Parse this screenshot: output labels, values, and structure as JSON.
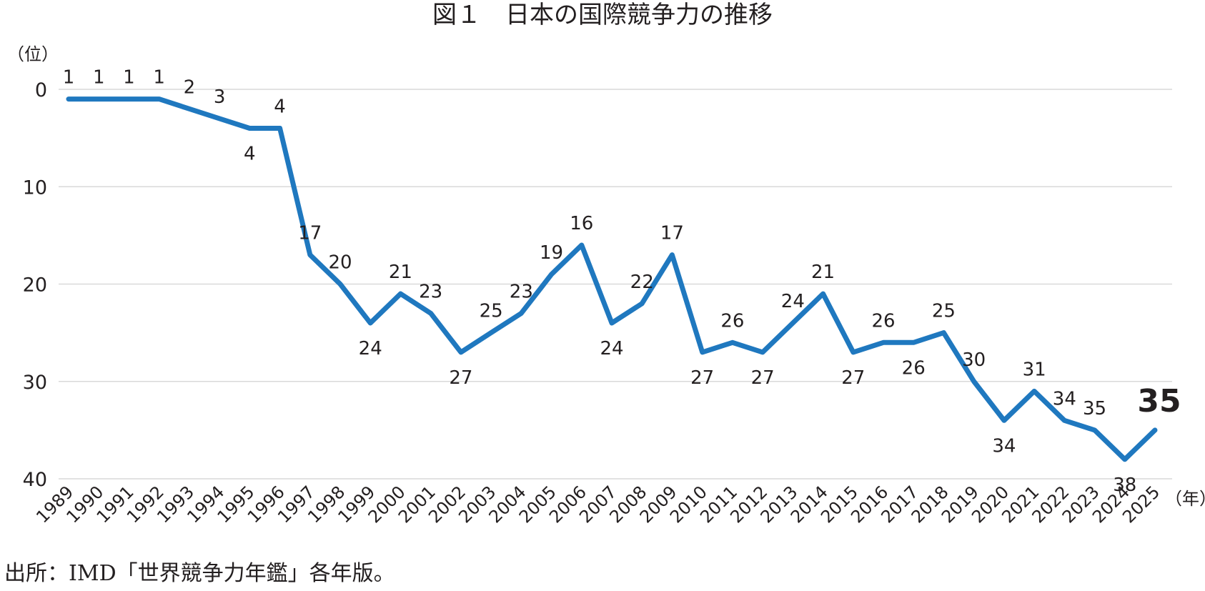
{
  "chart_data": {
    "type": "line",
    "title": "図１　日本の国際競争力の推移",
    "ylabel": "（位）",
    "xlabel": "（年）",
    "y_inverted": false,
    "ylim": [
      0,
      40
    ],
    "yticks": [
      0,
      10,
      20,
      30,
      40
    ],
    "grid": true,
    "colors": {
      "line": "#1f78bf",
      "grid": "#d9d9d9",
      "text": "#231f20"
    },
    "x": [
      "1989",
      "1990",
      "1991",
      "1992",
      "1993",
      "1994",
      "1995",
      "1996",
      "1997",
      "1998",
      "1999",
      "2000",
      "2001",
      "2002",
      "2003",
      "2004",
      "2005",
      "2006",
      "2007",
      "2008",
      "2009",
      "2010",
      "2011",
      "2012",
      "2013",
      "2014",
      "2015",
      "2016",
      "2017",
      "2018",
      "2019",
      "2020",
      "2021",
      "2022",
      "2023",
      "2024",
      "2025"
    ],
    "series": [
      {
        "values": [
          1,
          1,
          1,
          1,
          2,
          3,
          4,
          4,
          17,
          20,
          24,
          21,
          23,
          27,
          25,
          23,
          19,
          16,
          24,
          22,
          17,
          27,
          26,
          27,
          24,
          21,
          27,
          26,
          26,
          25,
          30,
          34,
          31,
          34,
          35,
          38,
          35
        ]
      }
    ],
    "highlight": {
      "x": "2025",
      "value": 35
    }
  },
  "source": "出所：IMD「世界競争力年鑑」各年版。"
}
